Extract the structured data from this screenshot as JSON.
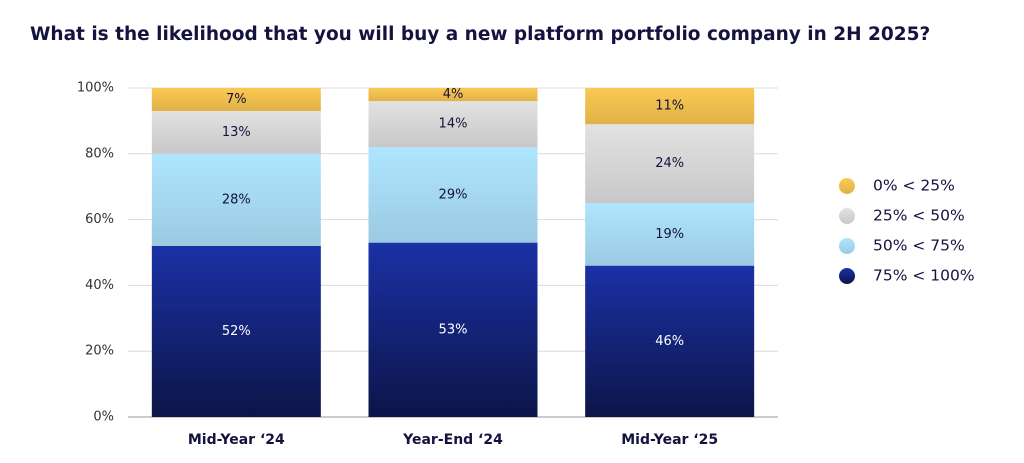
{
  "chart_data": {
    "type": "stacked-bar",
    "title": "What is the likelihood that you will buy a new platform portfolio company in 2H 2025?",
    "categories": [
      "Mid-Year ‘24",
      "Year-End ‘24",
      "Mid-Year ‘25"
    ],
    "series": [
      {
        "name": "0% < 25%",
        "color": "#f2c14e",
        "values": [
          7,
          4,
          11
        ],
        "value_labels": [
          "7%",
          "4%",
          "11%"
        ]
      },
      {
        "name": "25% < 50%",
        "color": "#d9d9d9",
        "values": [
          13,
          14,
          24
        ],
        "value_labels": [
          "13%",
          "14%",
          "24%"
        ]
      },
      {
        "name": "50% < 75%",
        "color": "#a8dcf6",
        "values": [
          28,
          29,
          19
        ],
        "value_labels": [
          "28%",
          "29%",
          "19%"
        ]
      },
      {
        "name": "75% < 100%",
        "color": "#1a2fa0",
        "values": [
          52,
          53,
          46
        ],
        "value_labels": [
          "52%",
          "53%",
          "46%"
        ]
      }
    ],
    "ylim": [
      0,
      100
    ],
    "yticks": [
      {
        "value": 0,
        "label": "0%"
      },
      {
        "value": 20,
        "label": "20%"
      },
      {
        "value": 40,
        "label": "40%"
      },
      {
        "value": 60,
        "label": "60%"
      },
      {
        "value": 80,
        "label": "80%"
      },
      {
        "value": 100,
        "label": "100%"
      }
    ],
    "grid": true,
    "legend": "right"
  }
}
